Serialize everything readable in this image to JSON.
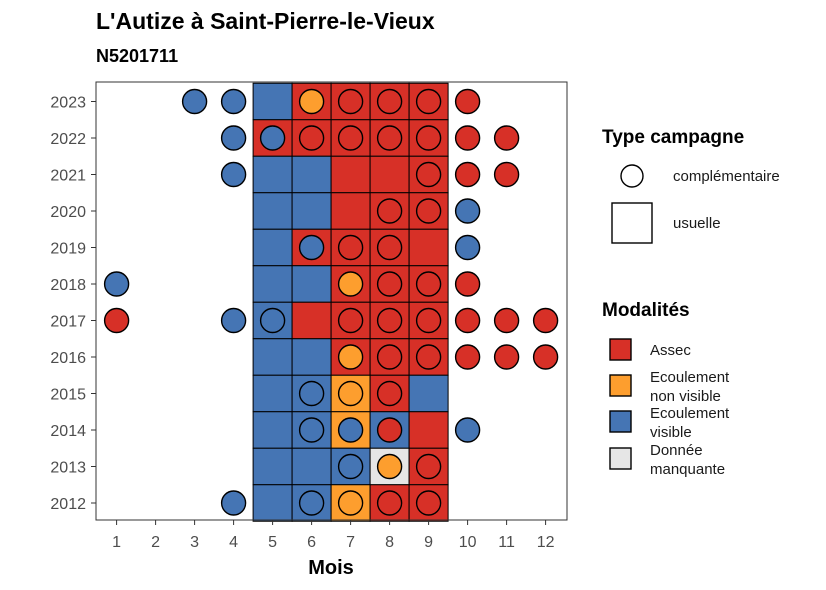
{
  "title": "L'Autize à Saint-Pierre-le-Vieux",
  "subtitle": "N5201711",
  "chart_data": {
    "type": "heatmap",
    "xlabel": "Mois",
    "x_ticks": [
      1,
      2,
      3,
      4,
      5,
      6,
      7,
      8,
      9,
      10,
      11,
      12
    ],
    "y_ticks": [
      2023,
      2022,
      2021,
      2020,
      2019,
      2018,
      2017,
      2016,
      2015,
      2014,
      2013,
      2012
    ],
    "xlim": [
      0.5,
      12.5
    ],
    "ylim": [
      2011.5,
      2023.5
    ],
    "colors": {
      "assec": "#d73027",
      "nonvisible": "#fd9e2e",
      "visible": "#4575b4",
      "manquante": "#e6e6e6"
    },
    "tiles": [
      {
        "year": 2023,
        "month": 5,
        "mod": "visible"
      },
      {
        "year": 2023,
        "month": 6,
        "mod": "assec"
      },
      {
        "year": 2023,
        "month": 7,
        "mod": "assec"
      },
      {
        "year": 2023,
        "month": 8,
        "mod": "assec"
      },
      {
        "year": 2023,
        "month": 9,
        "mod": "assec"
      },
      {
        "year": 2022,
        "month": 5,
        "mod": "assec"
      },
      {
        "year": 2022,
        "month": 6,
        "mod": "assec"
      },
      {
        "year": 2022,
        "month": 7,
        "mod": "assec"
      },
      {
        "year": 2022,
        "month": 8,
        "mod": "assec"
      },
      {
        "year": 2022,
        "month": 9,
        "mod": "assec"
      },
      {
        "year": 2021,
        "month": 5,
        "mod": "visible"
      },
      {
        "year": 2021,
        "month": 6,
        "mod": "visible"
      },
      {
        "year": 2021,
        "month": 7,
        "mod": "assec"
      },
      {
        "year": 2021,
        "month": 8,
        "mod": "assec"
      },
      {
        "year": 2021,
        "month": 9,
        "mod": "assec"
      },
      {
        "year": 2020,
        "month": 5,
        "mod": "visible"
      },
      {
        "year": 2020,
        "month": 6,
        "mod": "visible"
      },
      {
        "year": 2020,
        "month": 7,
        "mod": "assec"
      },
      {
        "year": 2020,
        "month": 8,
        "mod": "assec"
      },
      {
        "year": 2020,
        "month": 9,
        "mod": "assec"
      },
      {
        "year": 2019,
        "month": 5,
        "mod": "visible"
      },
      {
        "year": 2019,
        "month": 6,
        "mod": "assec"
      },
      {
        "year": 2019,
        "month": 7,
        "mod": "assec"
      },
      {
        "year": 2019,
        "month": 8,
        "mod": "assec"
      },
      {
        "year": 2019,
        "month": 9,
        "mod": "assec"
      },
      {
        "year": 2018,
        "month": 5,
        "mod": "visible"
      },
      {
        "year": 2018,
        "month": 6,
        "mod": "visible"
      },
      {
        "year": 2018,
        "month": 7,
        "mod": "assec"
      },
      {
        "year": 2018,
        "month": 8,
        "mod": "assec"
      },
      {
        "year": 2018,
        "month": 9,
        "mod": "assec"
      },
      {
        "year": 2017,
        "month": 5,
        "mod": "visible"
      },
      {
        "year": 2017,
        "month": 6,
        "mod": "assec"
      },
      {
        "year": 2017,
        "month": 7,
        "mod": "assec"
      },
      {
        "year": 2017,
        "month": 8,
        "mod": "assec"
      },
      {
        "year": 2017,
        "month": 9,
        "mod": "assec"
      },
      {
        "year": 2016,
        "month": 5,
        "mod": "visible"
      },
      {
        "year": 2016,
        "month": 6,
        "mod": "visible"
      },
      {
        "year": 2016,
        "month": 7,
        "mod": "assec"
      },
      {
        "year": 2016,
        "month": 8,
        "mod": "assec"
      },
      {
        "year": 2016,
        "month": 9,
        "mod": "assec"
      },
      {
        "year": 2015,
        "month": 5,
        "mod": "visible"
      },
      {
        "year": 2015,
        "month": 6,
        "mod": "visible"
      },
      {
        "year": 2015,
        "month": 7,
        "mod": "nonvisible"
      },
      {
        "year": 2015,
        "month": 8,
        "mod": "assec"
      },
      {
        "year": 2015,
        "month": 9,
        "mod": "visible"
      },
      {
        "year": 2014,
        "month": 5,
        "mod": "visible"
      },
      {
        "year": 2014,
        "month": 6,
        "mod": "visible"
      },
      {
        "year": 2014,
        "month": 7,
        "mod": "nonvisible"
      },
      {
        "year": 2014,
        "month": 8,
        "mod": "visible"
      },
      {
        "year": 2014,
        "month": 9,
        "mod": "assec"
      },
      {
        "year": 2013,
        "month": 5,
        "mod": "visible"
      },
      {
        "year": 2013,
        "month": 6,
        "mod": "visible"
      },
      {
        "year": 2013,
        "month": 7,
        "mod": "visible"
      },
      {
        "year": 2013,
        "month": 8,
        "mod": "manquante"
      },
      {
        "year": 2013,
        "month": 9,
        "mod": "assec"
      },
      {
        "year": 2012,
        "month": 5,
        "mod": "visible"
      },
      {
        "year": 2012,
        "month": 6,
        "mod": "visible"
      },
      {
        "year": 2012,
        "month": 7,
        "mod": "nonvisible"
      },
      {
        "year": 2012,
        "month": 8,
        "mod": "assec"
      },
      {
        "year": 2012,
        "month": 9,
        "mod": "assec"
      }
    ],
    "points": [
      {
        "year": 2023,
        "month": 3,
        "mod": "visible"
      },
      {
        "year": 2023,
        "month": 4,
        "mod": "visible"
      },
      {
        "year": 2023,
        "month": 6,
        "mod": "nonvisible"
      },
      {
        "year": 2023,
        "month": 7,
        "mod": "assec"
      },
      {
        "year": 2023,
        "month": 8,
        "mod": "assec"
      },
      {
        "year": 2023,
        "month": 9,
        "mod": "assec"
      },
      {
        "year": 2023,
        "month": 10,
        "mod": "assec"
      },
      {
        "year": 2022,
        "month": 4,
        "mod": "visible"
      },
      {
        "year": 2022,
        "month": 5,
        "mod": "visible"
      },
      {
        "year": 2022,
        "month": 6,
        "mod": "assec"
      },
      {
        "year": 2022,
        "month": 7,
        "mod": "assec"
      },
      {
        "year": 2022,
        "month": 8,
        "mod": "assec"
      },
      {
        "year": 2022,
        "month": 9,
        "mod": "assec"
      },
      {
        "year": 2022,
        "month": 10,
        "mod": "assec"
      },
      {
        "year": 2022,
        "month": 11,
        "mod": "assec"
      },
      {
        "year": 2021,
        "month": 4,
        "mod": "visible"
      },
      {
        "year": 2021,
        "month": 9,
        "mod": "assec"
      },
      {
        "year": 2021,
        "month": 10,
        "mod": "assec"
      },
      {
        "year": 2021,
        "month": 11,
        "mod": "assec"
      },
      {
        "year": 2020,
        "month": 8,
        "mod": "assec"
      },
      {
        "year": 2020,
        "month": 9,
        "mod": "assec"
      },
      {
        "year": 2020,
        "month": 10,
        "mod": "visible"
      },
      {
        "year": 2019,
        "month": 6,
        "mod": "visible"
      },
      {
        "year": 2019,
        "month": 7,
        "mod": "assec"
      },
      {
        "year": 2019,
        "month": 8,
        "mod": "assec"
      },
      {
        "year": 2019,
        "month": 10,
        "mod": "visible"
      },
      {
        "year": 2018,
        "month": 1,
        "mod": "visible"
      },
      {
        "year": 2018,
        "month": 7,
        "mod": "nonvisible"
      },
      {
        "year": 2018,
        "month": 8,
        "mod": "assec"
      },
      {
        "year": 2018,
        "month": 9,
        "mod": "assec"
      },
      {
        "year": 2018,
        "month": 10,
        "mod": "assec"
      },
      {
        "year": 2017,
        "month": 1,
        "mod": "assec"
      },
      {
        "year": 2017,
        "month": 4,
        "mod": "visible"
      },
      {
        "year": 2017,
        "month": 5,
        "mod": "visible"
      },
      {
        "year": 2017,
        "month": 7,
        "mod": "assec"
      },
      {
        "year": 2017,
        "month": 8,
        "mod": "assec"
      },
      {
        "year": 2017,
        "month": 9,
        "mod": "assec"
      },
      {
        "year": 2017,
        "month": 10,
        "mod": "assec"
      },
      {
        "year": 2017,
        "month": 11,
        "mod": "assec"
      },
      {
        "year": 2017,
        "month": 12,
        "mod": "assec"
      },
      {
        "year": 2016,
        "month": 7,
        "mod": "nonvisible"
      },
      {
        "year": 2016,
        "month": 8,
        "mod": "assec"
      },
      {
        "year": 2016,
        "month": 9,
        "mod": "assec"
      },
      {
        "year": 2016,
        "month": 10,
        "mod": "assec"
      },
      {
        "year": 2016,
        "month": 11,
        "mod": "assec"
      },
      {
        "year": 2016,
        "month": 12,
        "mod": "assec"
      },
      {
        "year": 2015,
        "month": 6,
        "mod": "visible"
      },
      {
        "year": 2015,
        "month": 7,
        "mod": "nonvisible"
      },
      {
        "year": 2015,
        "month": 8,
        "mod": "assec"
      },
      {
        "year": 2014,
        "month": 6,
        "mod": "visible"
      },
      {
        "year": 2014,
        "month": 7,
        "mod": "visible"
      },
      {
        "year": 2014,
        "month": 8,
        "mod": "assec"
      },
      {
        "year": 2014,
        "month": 10,
        "mod": "visible"
      },
      {
        "year": 2013,
        "month": 7,
        "mod": "visible"
      },
      {
        "year": 2013,
        "month": 8,
        "mod": "nonvisible"
      },
      {
        "year": 2013,
        "month": 9,
        "mod": "assec"
      },
      {
        "year": 2012,
        "month": 4,
        "mod": "visible"
      },
      {
        "year": 2012,
        "month": 6,
        "mod": "visible"
      },
      {
        "year": 2012,
        "month": 7,
        "mod": "nonvisible"
      },
      {
        "year": 2012,
        "month": 8,
        "mod": "assec"
      },
      {
        "year": 2012,
        "month": 9,
        "mod": "assec"
      }
    ],
    "legend": {
      "type_title": "Type campagne",
      "type_items": [
        {
          "shape": "circle",
          "label": "complémentaire"
        },
        {
          "shape": "square",
          "label": "usuelle"
        }
      ],
      "mod_title": "Modalités",
      "mod_items": [
        {
          "key": "assec",
          "label_lines": [
            "Assec"
          ]
        },
        {
          "key": "nonvisible",
          "label_lines": [
            "Ecoulement",
            "non visible"
          ]
        },
        {
          "key": "visible",
          "label_lines": [
            "Ecoulement",
            "visible"
          ]
        },
        {
          "key": "manquante",
          "label_lines": [
            "Donnée",
            "manquante"
          ]
        }
      ],
      "placement": "right"
    }
  }
}
